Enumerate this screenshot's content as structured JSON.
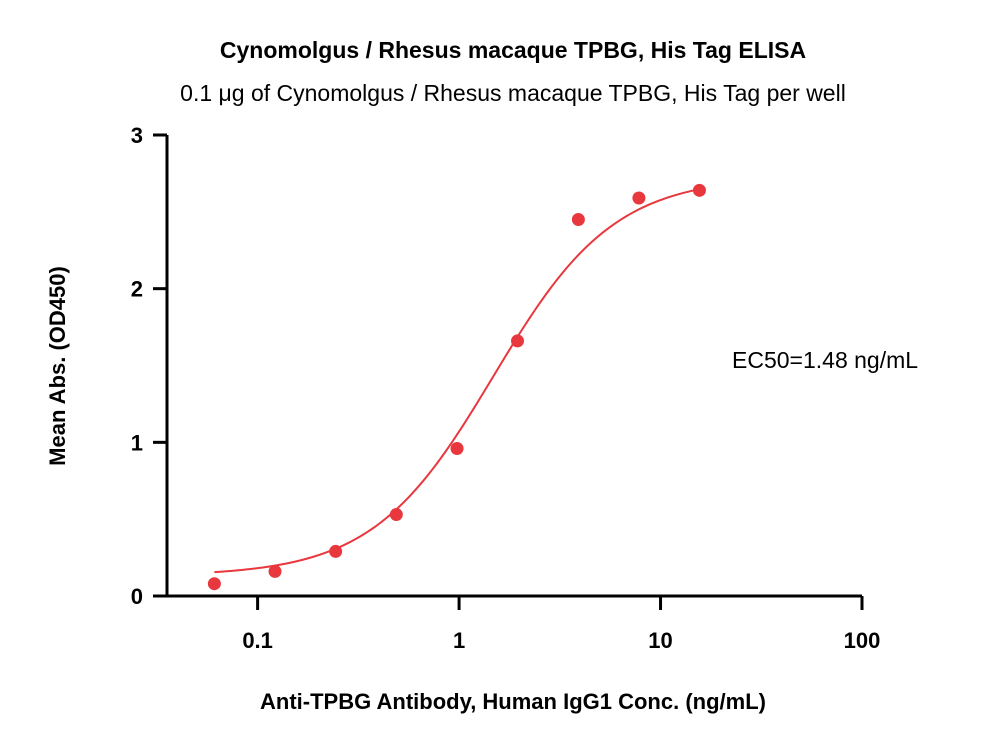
{
  "chart_data": {
    "type": "scatter",
    "title": "Cynomolgus / Rhesus macaque TPBG, His Tag ELISA",
    "subtitle": "0.1 μg of Cynomolgus / Rhesus macaque TPBG, His Tag per well",
    "xlabel": "Anti-TPBG Antibody, Human IgG1 Conc. (ng/mL)",
    "ylabel": "Mean Abs. (OD450)",
    "x_scale": "log",
    "xlim": [
      0.0355,
      100
    ],
    "ylim": [
      0,
      3
    ],
    "x_ticks": [
      0.1,
      1,
      10,
      100
    ],
    "x_tick_labels": [
      "0.1",
      "1",
      "10",
      "100"
    ],
    "y_ticks": [
      0,
      1,
      2,
      3
    ],
    "y_tick_labels": [
      "0",
      "1",
      "2",
      "3"
    ],
    "annotation": "EC50=1.48 ng/mL",
    "color": "#e8373d",
    "series": [
      {
        "x": [
          0.061,
          0.122,
          0.244,
          0.488,
          0.977,
          1.95,
          3.91,
          7.81,
          15.6
        ],
        "y": [
          0.08,
          0.16,
          0.29,
          0.53,
          0.96,
          1.66,
          2.45,
          2.59,
          2.64
        ]
      }
    ],
    "fit": {
      "bottom": 0.13,
      "top": 2.73,
      "ec50": 1.48,
      "hill": 1.45,
      "x_range": [
        0.061,
        15.6
      ]
    }
  }
}
